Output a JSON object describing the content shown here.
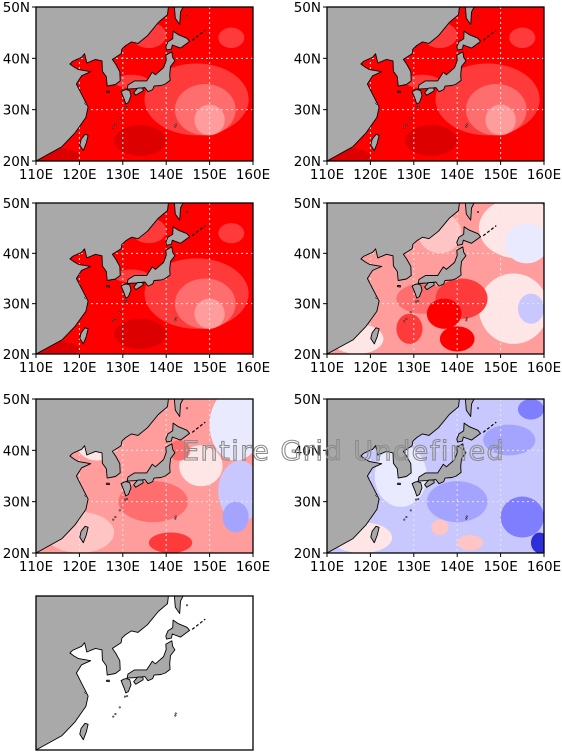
{
  "panels": [
    {
      "regime": "warm-strong"
    },
    {
      "regime": "warm-strong"
    },
    {
      "regime": "warm-strong"
    },
    {
      "regime": "warm-moderate"
    },
    {
      "regime": "mixed"
    },
    {
      "regime": "cool"
    },
    {
      "regime": "undefined",
      "axis_labels": false
    }
  ],
  "x_tick_labels": [
    "110E",
    "120E",
    "130E",
    "140E",
    "150E",
    "160E"
  ],
  "y_tick_labels": [
    "20N",
    "30N",
    "40N",
    "50N"
  ],
  "overlay_text": "Entire Grid Undefined",
  "colors": {
    "land": "#a9a9a9",
    "coast": "#000000",
    "grid": "#e8e8e8",
    "warm_shades": [
      "#ffe6e6",
      "#ffc4c4",
      "#ff9c9c",
      "#ff6e6e",
      "#ff3a3a",
      "#ff0000",
      "#dd0000"
    ],
    "cool_shades": [
      "#eaeaff",
      "#c8c8ff",
      "#a4a4ff",
      "#7e7eff",
      "#5252f0",
      "#2e2ed8"
    ],
    "undefined": "#ffffff"
  }
}
